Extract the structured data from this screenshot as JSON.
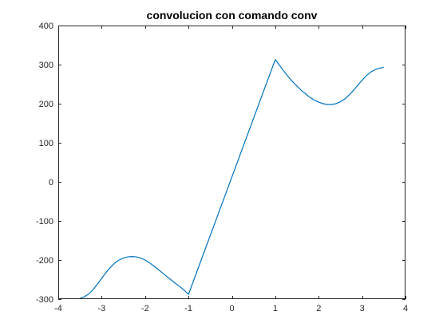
{
  "chart_data": {
    "type": "line",
    "title": "convolucion con comando conv",
    "xlabel": "",
    "ylabel": "",
    "xlim": [
      -4,
      4
    ],
    "ylim": [
      -300,
      400
    ],
    "x_ticks": [
      -4,
      -3,
      -2,
      -1,
      0,
      1,
      2,
      3,
      4
    ],
    "y_ticks": [
      -300,
      -200,
      -100,
      0,
      100,
      200,
      300,
      400
    ],
    "x_tick_labels": [
      "-4",
      "-3",
      "-2",
      "-1",
      "0",
      "1",
      "2",
      "3",
      "4"
    ],
    "y_tick_labels": [
      "-300",
      "-200",
      "-100",
      "0",
      "100",
      "200",
      "300",
      "400"
    ],
    "grid": false,
    "series": [
      {
        "color": "#0072bd",
        "x": [
          -3.5,
          -3.4,
          -3.3,
          -3.2,
          -3.1,
          -3.0,
          -2.9,
          -2.8,
          -2.7,
          -2.6,
          -2.5,
          -2.4,
          -2.3,
          -2.2,
          -2.1,
          -2.0,
          -1.9,
          -1.8,
          -1.7,
          -1.6,
          -1.5,
          -1.4,
          -1.3,
          -1.2,
          -1.1,
          -1.0,
          1.0,
          1.1,
          1.2,
          1.3,
          1.4,
          1.5,
          1.6,
          1.7,
          1.8,
          1.9,
          2.0,
          2.1,
          2.2,
          2.3,
          2.4,
          2.5,
          2.6,
          2.7,
          2.8,
          2.9,
          3.0,
          3.1,
          3.2,
          3.3,
          3.4,
          3.5
        ],
        "y": [
          -298,
          -294,
          -287,
          -276,
          -262,
          -247,
          -232,
          -219,
          -208,
          -200,
          -195,
          -192,
          -191,
          -192,
          -195,
          -200,
          -207,
          -215,
          -224,
          -233,
          -242,
          -251,
          -260,
          -268,
          -277,
          -288,
          313,
          298,
          283,
          269,
          256,
          245,
          234,
          225,
          216,
          209,
          204,
          200,
          198,
          198,
          200,
          205,
          212,
          222,
          234,
          247,
          260,
          272,
          281,
          287,
          291,
          293
        ]
      }
    ]
  }
}
